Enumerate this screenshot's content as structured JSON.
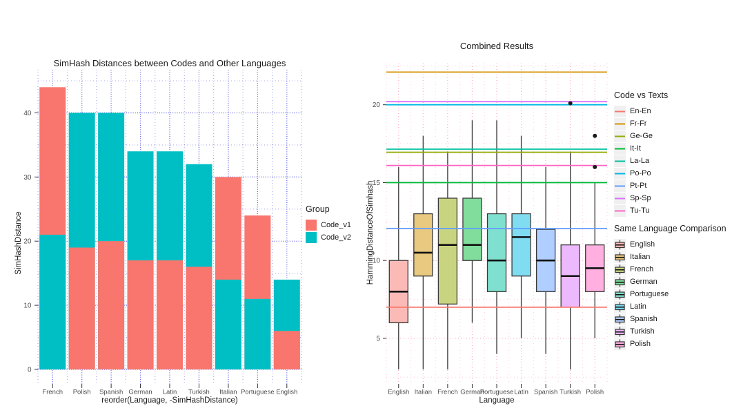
{
  "page": {
    "background": "#ffffff"
  },
  "chart_data": [
    {
      "type": "bar",
      "title": "SimHash Distances between Codes and Other Languages",
      "xlabel": "reorder(Language, -SimHashDistance)",
      "ylabel": "SimHashDistance",
      "legend_title": "Group",
      "categories": [
        "French",
        "Polish",
        "Spanish",
        "German",
        "Latin",
        "Turkish",
        "Italian",
        "Portuguese",
        "English"
      ],
      "series": [
        {
          "name": "Code_v1",
          "color": "#F8766D",
          "values": [
            44,
            19,
            20,
            17,
            17,
            16,
            30,
            24,
            6
          ]
        },
        {
          "name": "Code_v2",
          "color": "#00BFC4",
          "values": [
            21,
            40,
            40,
            34,
            34,
            32,
            14,
            11,
            14
          ]
        }
      ],
      "bar_position": "identity-overlay, shorter bar drawn in front",
      "ylim": [
        0,
        46
      ],
      "yticks": [
        0,
        10,
        20,
        30,
        40
      ],
      "yticks_minor": [
        5,
        15,
        25,
        35,
        45
      ],
      "grid": {
        "color": "#3E3ED6",
        "style": "dotted"
      }
    },
    {
      "type": "boxplot",
      "title": "Combined Results",
      "xlabel": "Language",
      "ylabel": "HammingDistanceOfSimhash",
      "legend_lines_title": "Code vs Texts",
      "legend_boxes_title": "Same Language Comparison",
      "categories": [
        "English",
        "Italian",
        "French",
        "German",
        "Portuguese",
        "Latin",
        "Spanish",
        "Turkish",
        "Polish"
      ],
      "boxes": [
        {
          "language": "English",
          "fill": "#FBBAB6",
          "low": 3,
          "q1": 6,
          "median": 8,
          "q3": 10,
          "high": 16,
          "outliers": []
        },
        {
          "language": "Italian",
          "fill": "#E9C880",
          "low": 3,
          "q1": 9,
          "median": 10.5,
          "q3": 13,
          "high": 18,
          "outliers": []
        },
        {
          "language": "French",
          "fill": "#C9D480",
          "low": 3,
          "q1": 7.2,
          "median": 11,
          "q3": 14,
          "high": 17,
          "outliers": []
        },
        {
          "language": "German",
          "fill": "#80DD9C",
          "low": 6,
          "q1": 10,
          "median": 11,
          "q3": 14,
          "high": 19,
          "outliers": []
        },
        {
          "language": "Portuguese",
          "fill": "#80E0CF",
          "low": 4,
          "q1": 8,
          "median": 10,
          "q3": 13,
          "high": 19,
          "outliers": []
        },
        {
          "language": "Latin",
          "fill": "#80DCF1",
          "low": 5,
          "q1": 9,
          "median": 11.5,
          "q3": 13,
          "high": 18,
          "outliers": []
        },
        {
          "language": "Spanish",
          "fill": "#B0CEFF",
          "low": 4,
          "q1": 8,
          "median": 10,
          "q3": 12,
          "high": 16,
          "outliers": []
        },
        {
          "language": "Turkish",
          "fill": "#EDB9FD",
          "low": 3,
          "q1": 7,
          "median": 9,
          "q3": 11,
          "high": 17,
          "outliers": [
            20.1
          ]
        },
        {
          "language": "Polish",
          "fill": "#FFB0E1",
          "low": 5,
          "q1": 8,
          "median": 9.5,
          "q3": 11,
          "high": 15,
          "outliers": [
            16,
            18
          ]
        }
      ],
      "hlines": [
        {
          "name": "En-En",
          "value": 7,
          "color": "#F8766D"
        },
        {
          "name": "Fr-Fr",
          "value": 22.1,
          "color": "#D39200"
        },
        {
          "name": "Ge-Ge",
          "value": 16.95,
          "color": "#93AA00"
        },
        {
          "name": "It-It",
          "value": 15,
          "color": "#00BA38"
        },
        {
          "name": "La-La",
          "value": 17.15,
          "color": "#00C19F"
        },
        {
          "name": "Po-Po",
          "value": 20,
          "color": "#00B9E3"
        },
        {
          "name": "Pt-Pt",
          "value": 12.05,
          "color": "#619CFF"
        },
        {
          "name": "Sp-Sp",
          "value": 20.2,
          "color": "#DB72FB"
        },
        {
          "name": "Tu-Tu",
          "value": 16.1,
          "color": "#FF61C3"
        }
      ],
      "ylim": [
        2,
        23
      ],
      "yticks": [
        5,
        10,
        15,
        20
      ],
      "yticks_minor": [
        2.5,
        7.5,
        12.5,
        17.5,
        22.5
      ],
      "grid": {
        "color": "#FF9FB6",
        "style": "dotted"
      }
    }
  ]
}
